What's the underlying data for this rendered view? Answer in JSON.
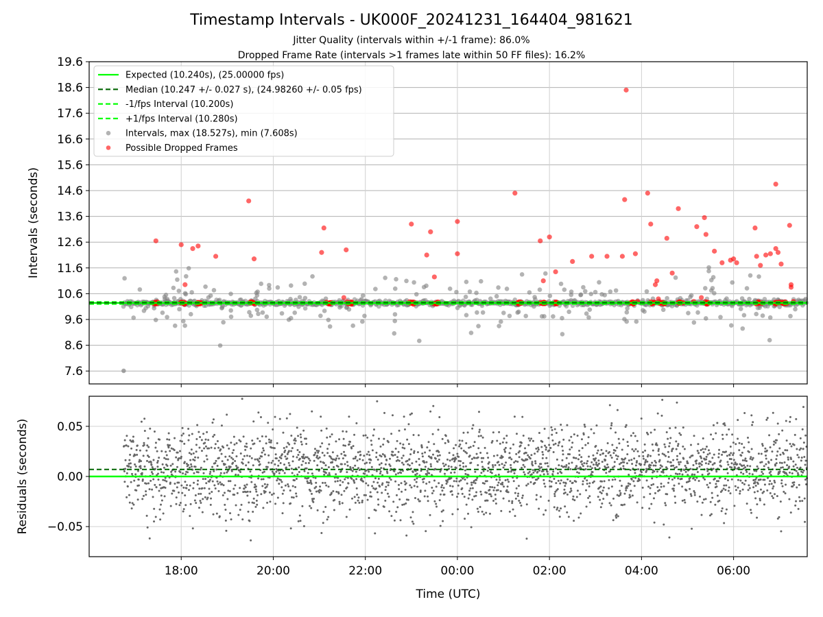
{
  "title": "Timestamp Intervals - UK000F_20241231_164404_981621",
  "subtitle1": "Jitter Quality (intervals within +/-1 frame): 86.0%",
  "subtitle2": "Dropped Frame Rate (intervals >1 frames late within 50 FF files): 16.2%",
  "colors": {
    "expected": "#00ff00",
    "median": "#006400",
    "bounds": "#00ff00",
    "intervals": "#808080",
    "dropped": "#ff0000"
  },
  "chart_data": [
    {
      "type": "scatter",
      "ylabel": "Intervals (seconds)",
      "ylim": [
        7.1,
        19.6
      ],
      "y_ticks": [
        "7.6",
        "8.6",
        "9.6",
        "10.6",
        "11.6",
        "12.6",
        "13.6",
        "14.6",
        "15.6",
        "16.6",
        "17.6",
        "18.6",
        "19.6"
      ],
      "y_tick_values": [
        7.6,
        8.6,
        9.6,
        10.6,
        11.6,
        12.6,
        13.6,
        14.6,
        15.6,
        16.6,
        17.6,
        18.6,
        19.6
      ],
      "xlim_hours_utc": [
        16.0,
        31.6
      ],
      "grid": true,
      "legend_placement": "top-left",
      "legend": [
        "Expected (10.240s), (25.00000 fps)",
        "Median (10.247 +/- 0.027 s), (24.98260 +/- 0.05 fps)",
        "-1/fps Interval (10.200s)",
        "+1/fps Interval (10.280s)",
        "Intervals, max (18.527s), min (7.608s)",
        "Possible Dropped Frames"
      ],
      "lines": {
        "expected": 10.24,
        "median": 10.247,
        "minus_one_fps": 10.2,
        "plus_one_fps": 10.28
      },
      "dropped_frames": [
        [
          "17:27",
          12.65
        ],
        [
          "18:00",
          12.5
        ],
        [
          "18:05",
          10.95
        ],
        [
          "18:15",
          12.35
        ],
        [
          "18:22",
          12.45
        ],
        [
          "18:45",
          12.05
        ],
        [
          "19:28",
          14.2
        ],
        [
          "19:35",
          11.95
        ],
        [
          "21:03",
          12.2
        ],
        [
          "21:06",
          13.15
        ],
        [
          "21:35",
          12.3
        ],
        [
          "21:32",
          10.45
        ],
        [
          "23:00",
          13.3
        ],
        [
          "23:20",
          12.1
        ],
        [
          "23:25",
          13.0
        ],
        [
          "23:30",
          11.25
        ],
        [
          "00:00",
          13.4
        ],
        [
          "00:00",
          12.15
        ],
        [
          "01:15",
          14.5
        ],
        [
          "01:48",
          12.65
        ],
        [
          "01:52",
          11.1
        ],
        [
          "02:00",
          12.8
        ],
        [
          "02:08",
          11.45
        ],
        [
          "02:30",
          11.85
        ],
        [
          "02:55",
          12.05
        ],
        [
          "03:15",
          12.05
        ],
        [
          "03:40",
          18.5
        ],
        [
          "03:38",
          14.25
        ],
        [
          "03:35",
          12.05
        ],
        [
          "03:52",
          12.15
        ],
        [
          "04:08",
          14.5
        ],
        [
          "04:12",
          13.3
        ],
        [
          "04:18",
          10.95
        ],
        [
          "04:20",
          11.1
        ],
        [
          "04:33",
          12.75
        ],
        [
          "04:40",
          11.4
        ],
        [
          "04:48",
          13.9
        ],
        [
          "05:12",
          13.2
        ],
        [
          "05:22",
          13.55
        ],
        [
          "05:24",
          12.9
        ],
        [
          "05:35",
          12.25
        ],
        [
          "05:45",
          11.8
        ],
        [
          "05:56",
          11.9
        ],
        [
          "06:00",
          11.95
        ],
        [
          "06:04",
          11.8
        ],
        [
          "06:28",
          13.15
        ],
        [
          "06:30",
          12.05
        ],
        [
          "06:35",
          11.7
        ],
        [
          "06:42",
          12.1
        ],
        [
          "06:48",
          12.15
        ],
        [
          "06:55",
          14.85
        ],
        [
          "06:55",
          12.35
        ],
        [
          "06:58",
          12.2
        ],
        [
          "07:02",
          11.75
        ],
        [
          "07:13",
          13.25
        ],
        [
          "07:15",
          10.95
        ],
        [
          "07:15",
          10.85
        ],
        [
          "07:18",
          10.3
        ],
        [
          "04:22",
          10.4
        ],
        [
          "05:08",
          10.3
        ],
        [
          "05:18",
          10.45
        ],
        [
          "03:55",
          10.3
        ]
      ],
      "x_extreme_min_point": [
        "16:45",
        7.608
      ]
    },
    {
      "type": "scatter",
      "ylabel": "Residuals (seconds)",
      "xlabel": "Time (UTC)",
      "ylim": [
        -0.08,
        0.08
      ],
      "y_ticks": [
        "−0.05",
        "0.00",
        "0.05"
      ],
      "y_tick_values": [
        -0.05,
        0.0,
        0.05
      ],
      "x_ticks": [
        "18:00",
        "20:00",
        "22:00",
        "00:00",
        "02:00",
        "04:00",
        "06:00"
      ],
      "x_tick_hours": [
        18,
        20,
        22,
        24,
        26,
        28,
        30
      ],
      "xlim_hours_utc": [
        16.0,
        31.6
      ],
      "median_residual": 0.007,
      "expected_residual": 0.0,
      "noise_std": 0.022,
      "grid": true
    }
  ]
}
